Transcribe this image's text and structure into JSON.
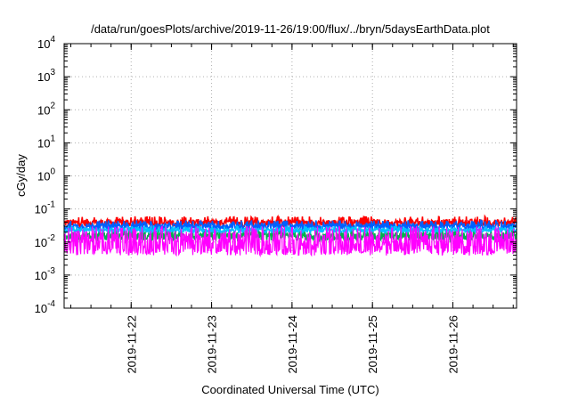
{
  "chart_data": {
    "type": "line",
    "title": "/data/run/goesPlots/archive/2019-11-26/19:00/flux/../bryn/5daysEarthData.plot",
    "xlabel": "Coordinated Universal Time (UTC)",
    "ylabel": "cGy/day",
    "y_scale": "log",
    "ylim": [
      0.0001,
      10000
    ],
    "y_ticks": [
      {
        "value": 0.0001,
        "base": "10",
        "exp": "-4"
      },
      {
        "value": 0.001,
        "base": "10",
        "exp": "-3"
      },
      {
        "value": 0.01,
        "base": "10",
        "exp": "-2"
      },
      {
        "value": 0.1,
        "base": "10",
        "exp": "-1"
      },
      {
        "value": 1,
        "base": "10",
        "exp": "0"
      },
      {
        "value": 10,
        "base": "10",
        "exp": "1"
      },
      {
        "value": 100,
        "base": "10",
        "exp": "2"
      },
      {
        "value": 1000,
        "base": "10",
        "exp": "3"
      },
      {
        "value": 10000,
        "base": "10",
        "exp": "4"
      }
    ],
    "xlim": [
      "2019-11-21T04:00",
      "2019-11-26T19:00"
    ],
    "x_ticks": [
      "2019-11-22",
      "2019-11-23",
      "2019-11-24",
      "2019-11-25",
      "2019-11-26"
    ],
    "grid": true,
    "series": [
      {
        "color": "#ff0000",
        "band": [
          0.022,
          0.06
        ],
        "values": []
      },
      {
        "color": "#00b050",
        "band": [
          0.008,
          0.025
        ],
        "values": []
      },
      {
        "color": "#0060ff",
        "band": [
          0.018,
          0.045
        ],
        "values": []
      },
      {
        "color": "#00c0ff",
        "band": [
          0.016,
          0.03
        ],
        "values": []
      },
      {
        "color": "#ff00ff",
        "band": [
          0.0035,
          0.03
        ],
        "values": []
      }
    ]
  }
}
